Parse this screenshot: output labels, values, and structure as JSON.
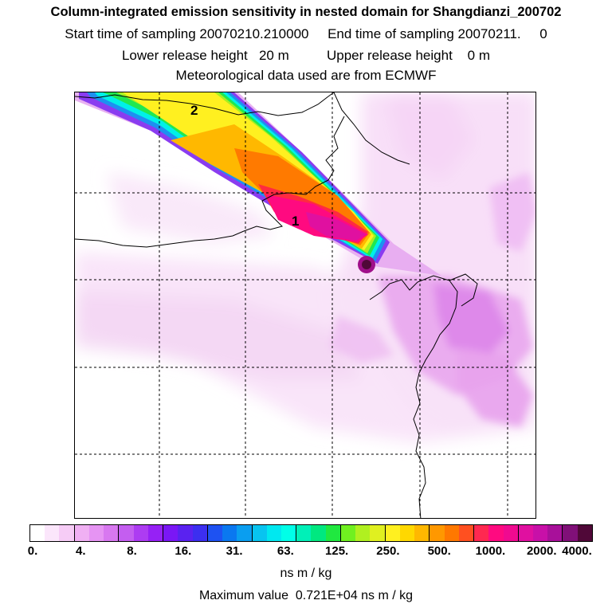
{
  "header": {
    "title": "Column-integrated emission sensitivity in nested domain for Shangdianzi_200702",
    "line2": "Start time of sampling 20070210.210000     End time of sampling 20070211.     0",
    "line3": "Lower release height   20 m          Upper release height    0 m",
    "line4": "Meteorological data used are from ECMWF"
  },
  "map": {
    "labels": [
      {
        "text": "1"
      },
      {
        "text": "2"
      }
    ]
  },
  "colorbar": {
    "colors": [
      "#ffffff",
      "#fbe6fb",
      "#f6ccf6",
      "#f0b0f3",
      "#e694f3",
      "#d878f0",
      "#c45ef0",
      "#ad3cf2",
      "#9621f5",
      "#7a17f5",
      "#5a22f0",
      "#3c2ff0",
      "#1e52f2",
      "#0a78f0",
      "#0a9ef0",
      "#08c4f0",
      "#00e8f0",
      "#00ffe8",
      "#00f0b8",
      "#00e880",
      "#20e840",
      "#70f020",
      "#b0f020",
      "#e0f020",
      "#fff020",
      "#ffd800",
      "#ffb800",
      "#ff9800",
      "#ff7800",
      "#ff5020",
      "#ff2850",
      "#ff0a80",
      "#f00a90",
      "#e010a0",
      "#c810a8",
      "#a8109a",
      "#801078",
      "#500838"
    ],
    "tick_labels": [
      "0.",
      "4.",
      "8.",
      "16.",
      "31.",
      "63.",
      "125.",
      "250.",
      "500.",
      "1000.",
      "2000.",
      "4000."
    ],
    "unit": "ns m / kg"
  },
  "footer": {
    "max_value": "Maximum value  0.721E+04 ns m / kg"
  }
}
